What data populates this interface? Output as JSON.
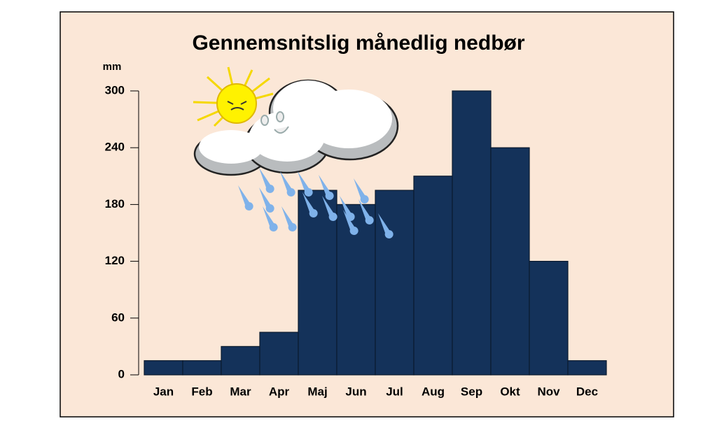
{
  "chart_data": {
    "type": "bar",
    "title": "Gennemsnitslig månedlig nedbør",
    "y_label": "mm",
    "categories": [
      "Jan",
      "Feb",
      "Mar",
      "Apr",
      "Maj",
      "Jun",
      "Jul",
      "Aug",
      "Sep",
      "Okt",
      "Nov",
      "Dec"
    ],
    "values": [
      15,
      15,
      30,
      45,
      195,
      180,
      195,
      210,
      300,
      240,
      120,
      15
    ],
    "color": "#14325a",
    "ylim": [
      0,
      300
    ],
    "yticks": [
      0,
      60,
      120,
      180,
      240,
      300
    ],
    "grid": false
  }
}
